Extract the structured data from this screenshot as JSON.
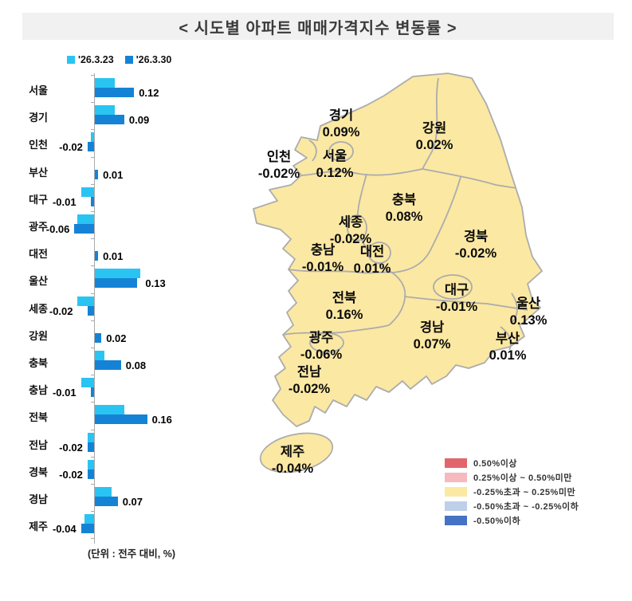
{
  "title": "< 시도별 아파트 매매가격지수 변동률 >",
  "unit_note": "(단위 : 전주 대비, %)",
  "colors": {
    "prev_week_bar": "#2AC4F3",
    "current_week_bar": "#1583D5",
    "map_fill": "#FBE8A3",
    "map_border": "#ACACAC",
    "title_band_bg": "#F1F1F1"
  },
  "chart_data": {
    "type": "bar",
    "orientation": "horizontal",
    "title": "시도별 아파트 매매가격지수 변동률",
    "unit": "전주 대비, %",
    "categories": [
      "서울",
      "경기",
      "인천",
      "부산",
      "대구",
      "광주",
      "대전",
      "울산",
      "세종",
      "강원",
      "충북",
      "충남",
      "전북",
      "전남",
      "경북",
      "경남",
      "제주"
    ],
    "series": [
      {
        "name": "'26.3.23",
        "color": "#2AC4F3",
        "values": [
          0.06,
          0.06,
          -0.01,
          0.0,
          -0.04,
          -0.05,
          0.0,
          0.14,
          -0.05,
          0.0,
          0.03,
          -0.04,
          0.09,
          -0.02,
          -0.02,
          0.05,
          -0.03
        ]
      },
      {
        "name": "'26.3.30",
        "color": "#1583D5",
        "values": [
          0.12,
          0.09,
          -0.02,
          0.01,
          -0.01,
          -0.06,
          0.01,
          0.13,
          -0.02,
          0.02,
          0.08,
          -0.01,
          0.16,
          -0.02,
          -0.02,
          0.07,
          -0.04
        ]
      }
    ],
    "value_labels": [
      "0.12",
      "0.09",
      "-0.02",
      "0.01",
      "-0.01",
      "-0.06",
      "0.01",
      "0.13",
      "-0.02",
      "0.02",
      "0.08",
      "-0.01",
      "0.16",
      "-0.02",
      "-0.02",
      "0.07",
      "-0.04"
    ],
    "xlim": [
      -0.1,
      0.2
    ],
    "grid": false,
    "legend_position": "top-left"
  },
  "map": {
    "regions": [
      {
        "id": "gyeonggi",
        "name": "경기",
        "value": "0.09%"
      },
      {
        "id": "gangwon",
        "name": "강원",
        "value": "0.02%"
      },
      {
        "id": "incheon",
        "name": "인천",
        "value": "-0.02%"
      },
      {
        "id": "seoul",
        "name": "서울",
        "value": "0.12%"
      },
      {
        "id": "chungbuk",
        "name": "충북",
        "value": "0.08%"
      },
      {
        "id": "sejong",
        "name": "세종",
        "value": "-0.02%"
      },
      {
        "id": "gyeongbuk",
        "name": "경북",
        "value": "-0.02%"
      },
      {
        "id": "chungnam",
        "name": "충남",
        "value": "-0.01%"
      },
      {
        "id": "daejeon",
        "name": "대전",
        "value": "0.01%"
      },
      {
        "id": "jeonbuk",
        "name": "전북",
        "value": "0.16%"
      },
      {
        "id": "daegu",
        "name": "대구",
        "value": "-0.01%"
      },
      {
        "id": "ulsan",
        "name": "울산",
        "value": "0.13%"
      },
      {
        "id": "gyeongnam",
        "name": "경남",
        "value": "0.07%"
      },
      {
        "id": "gwangju",
        "name": "광주",
        "value": "-0.06%"
      },
      {
        "id": "busan",
        "name": "부산",
        "value": "0.01%"
      },
      {
        "id": "jeonnam",
        "name": "전남",
        "value": "-0.02%"
      },
      {
        "id": "jeju",
        "name": "제주",
        "value": "-0.04%"
      }
    ],
    "legend": [
      {
        "color": "#E2656B",
        "label": "0.50%이상"
      },
      {
        "color": "#F5B9BE",
        "label": "0.25%이상 ~ 0.50%미만"
      },
      {
        "color": "#FBE8A3",
        "label": "-0.25%초과 ~ 0.25%미만"
      },
      {
        "color": "#BECFE8",
        "label": "-0.50%초과 ~ -0.25%이하"
      },
      {
        "color": "#4472C4",
        "label": "-0.50%이하"
      }
    ]
  }
}
